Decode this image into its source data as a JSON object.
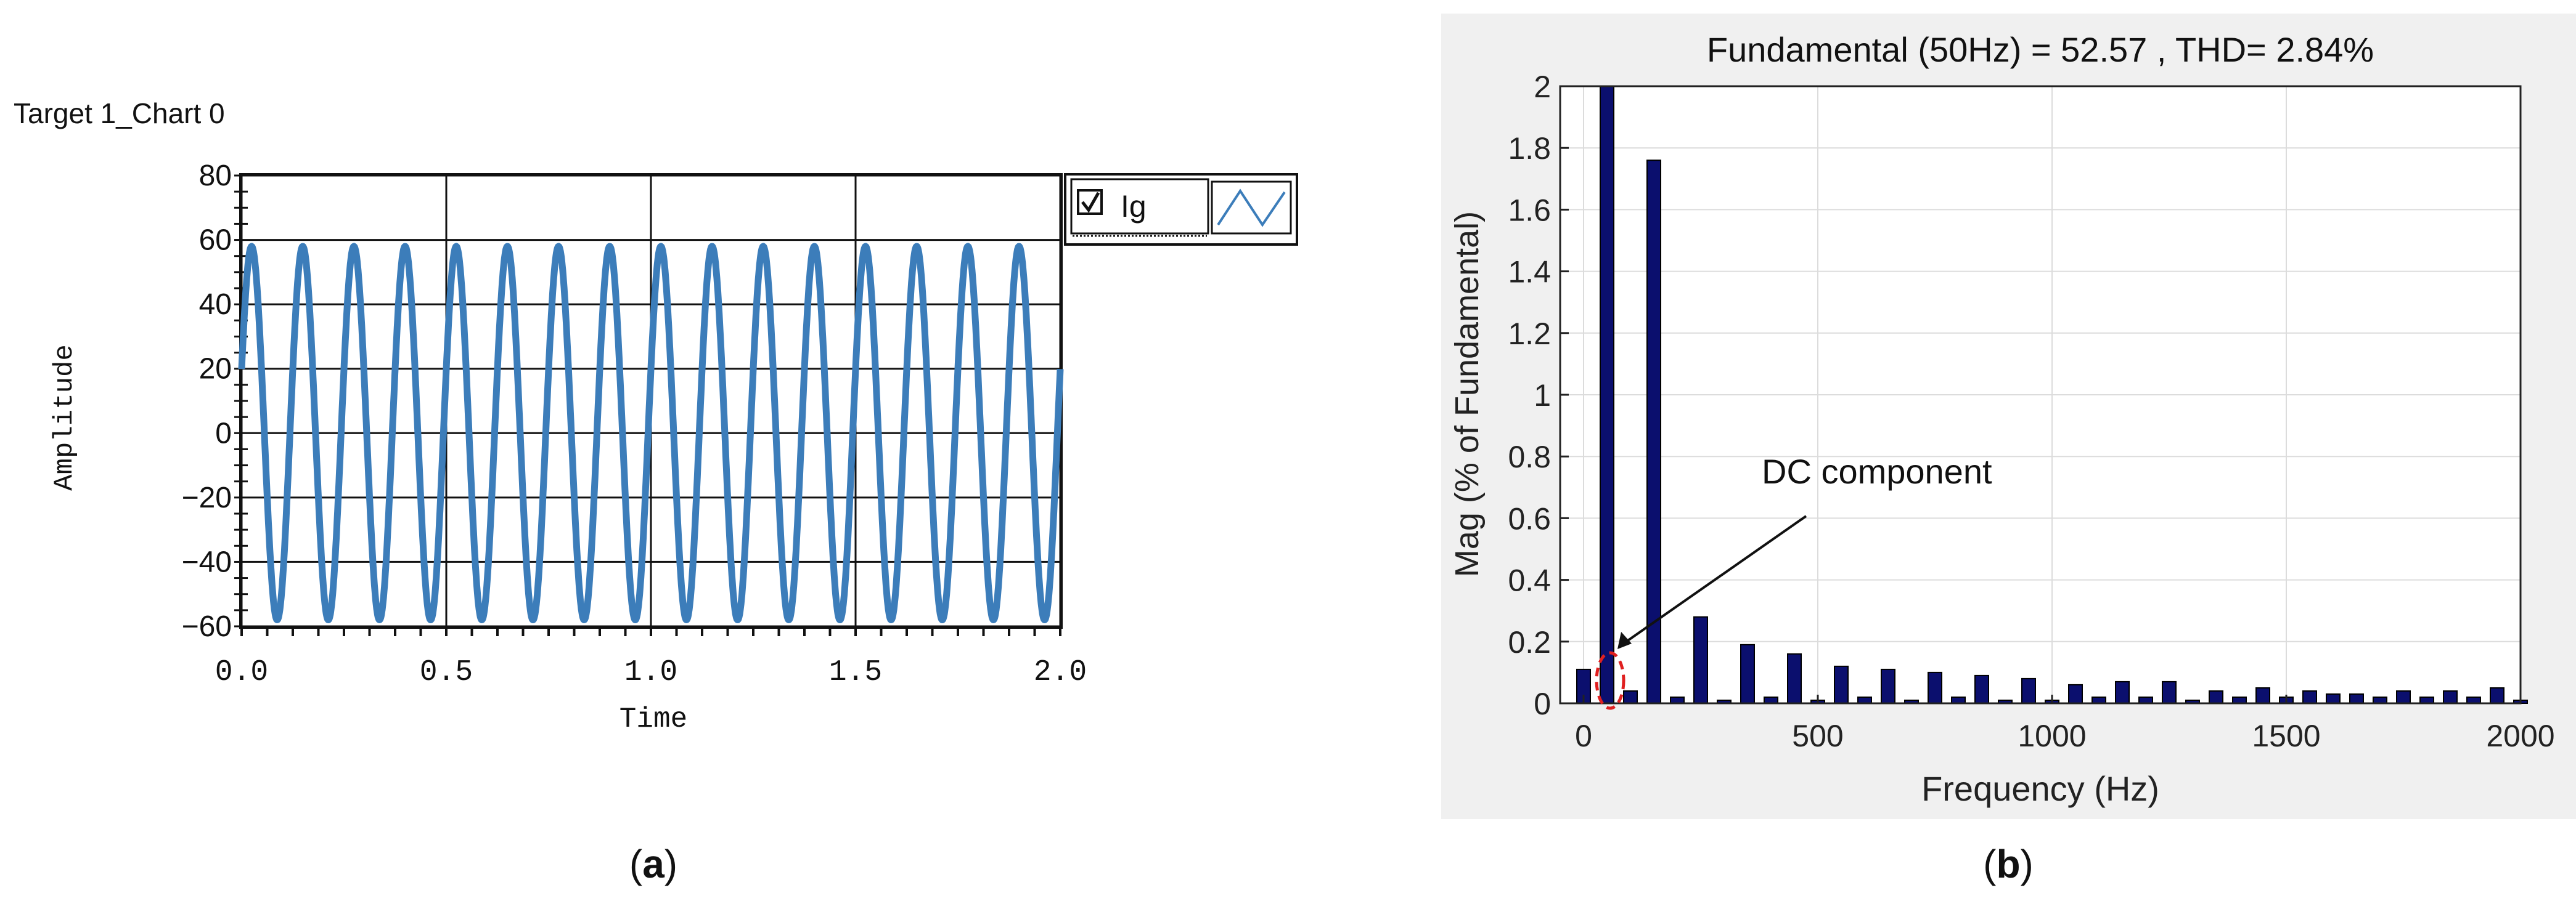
{
  "panel_a": {
    "header": "Target 1_Chart 0",
    "caption": "a",
    "legend": {
      "checkbox_state": "checked",
      "series_label": "Ig"
    }
  },
  "panel_b": {
    "caption": "b",
    "annotation": "DC component"
  },
  "chart_data": [
    {
      "type": "line",
      "title": "Target 1_Chart 0",
      "xlabel": "Time",
      "ylabel": "Amplitude",
      "xlim": [
        0,
        2.0
      ],
      "ylim": [
        -60,
        80
      ],
      "xticks": [
        "0.0",
        "0.5",
        "1.0",
        "1.5",
        "2.0"
      ],
      "yticks": [
        "80",
        "60",
        "40",
        "20",
        "0",
        "−20",
        "−40",
        "−60"
      ],
      "grid": true,
      "legend_position": "right-outside-top",
      "series": [
        {
          "name": "Ig",
          "color": "#3c7dba",
          "waveform": "sine",
          "amplitude": 58,
          "cycles": 16,
          "x_range": [
            0,
            2.0
          ]
        }
      ]
    },
    {
      "type": "bar",
      "title": "Fundamental (50Hz) = 52.57 , THD= 2.84%",
      "xlabel": "Frequency (Hz)",
      "ylabel": "Mag (% of Fundamental)",
      "xlim": [
        -50,
        2000
      ],
      "ylim": [
        0,
        2
      ],
      "xticks": [
        "0",
        "500",
        "1000",
        "1500",
        "2000"
      ],
      "yticks": [
        "0",
        "0.2",
        "0.4",
        "0.6",
        "0.8",
        "1",
        "1.2",
        "1.4",
        "1.6",
        "1.8",
        "2"
      ],
      "grid": true,
      "bar_color": "#0b0f6e",
      "x": [
        0,
        50,
        100,
        150,
        200,
        250,
        300,
        350,
        400,
        450,
        500,
        550,
        600,
        650,
        700,
        750,
        800,
        850,
        900,
        950,
        1000,
        1050,
        1100,
        1150,
        1200,
        1250,
        1300,
        1350,
        1400,
        1450,
        1500,
        1550,
        1600,
        1650,
        1700,
        1750,
        1800,
        1850,
        1900,
        1950,
        2000
      ],
      "values": [
        0.11,
        2.0,
        0.04,
        1.76,
        0.02,
        0.28,
        0.01,
        0.19,
        0.02,
        0.16,
        0.01,
        0.12,
        0.02,
        0.11,
        0.01,
        0.1,
        0.02,
        0.09,
        0.01,
        0.08,
        0.01,
        0.06,
        0.02,
        0.07,
        0.02,
        0.07,
        0.01,
        0.04,
        0.02,
        0.05,
        0.02,
        0.04,
        0.03,
        0.03,
        0.02,
        0.04,
        0.02,
        0.04,
        0.02,
        0.05,
        0.01
      ],
      "annotation": {
        "text": "DC component",
        "points_to_x": 0
      }
    }
  ]
}
